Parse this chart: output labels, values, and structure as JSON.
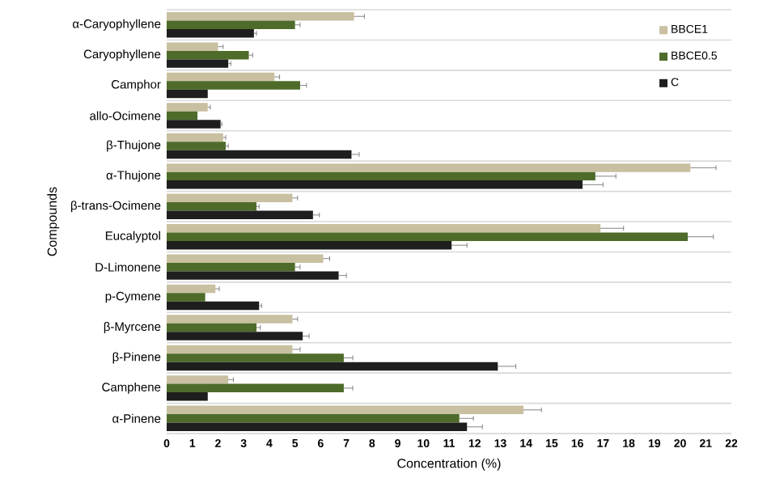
{
  "chart_data": {
    "type": "bar",
    "orientation": "horizontal",
    "xlabel": "Concentration (%)",
    "ylabel": "Compounds",
    "categories": [
      "α-Caryophyllene",
      "Caryophyllene",
      "Camphor",
      "allo-Ocimene",
      "β-Thujone",
      "α-Thujone",
      "β-trans-Ocimene",
      "Eucalyptol",
      "D-Limonene",
      "p-Cymene",
      "β-Myrcene",
      "β-Pinene",
      "Camphene",
      "α-Pinene"
    ],
    "series": [
      {
        "name": "BBCE1",
        "color": "#c8c0a0",
        "values": [
          7.3,
          2.0,
          4.2,
          1.6,
          2.2,
          20.4,
          4.9,
          16.9,
          6.1,
          1.9,
          4.9,
          4.9,
          2.4,
          13.9
        ],
        "errors": [
          0.4,
          0.2,
          0.2,
          0.1,
          0.1,
          1.0,
          0.2,
          0.9,
          0.25,
          0.15,
          0.2,
          0.3,
          0.2,
          0.7
        ]
      },
      {
        "name": "BBCE0.5",
        "color": "#4e6b2a",
        "values": [
          5.0,
          3.2,
          5.2,
          1.2,
          2.3,
          16.7,
          3.5,
          20.3,
          5.0,
          1.5,
          3.5,
          6.9,
          6.9,
          11.4
        ],
        "errors": [
          0.2,
          0.15,
          0.25,
          null,
          0.1,
          0.8,
          0.1,
          1.0,
          0.2,
          null,
          0.15,
          0.35,
          0.35,
          0.55
        ]
      },
      {
        "name": "C",
        "color": "#1e1e1e",
        "values": [
          3.4,
          2.4,
          1.6,
          2.1,
          7.2,
          16.2,
          5.7,
          11.1,
          6.7,
          3.6,
          5.3,
          12.9,
          1.6,
          11.7
        ],
        "errors": [
          0.1,
          0.1,
          null,
          0.05,
          0.3,
          0.8,
          0.25,
          0.6,
          0.3,
          0.1,
          0.25,
          0.7,
          null,
          0.6
        ]
      }
    ],
    "xlim": [
      0,
      22
    ],
    "xticks": [
      0,
      1,
      2,
      3,
      4,
      5,
      6,
      7,
      8,
      9,
      10,
      11,
      12,
      13,
      14,
      15,
      16,
      17,
      18,
      19,
      20,
      21,
      22
    ],
    "grid": "y",
    "legend": "top right"
  }
}
